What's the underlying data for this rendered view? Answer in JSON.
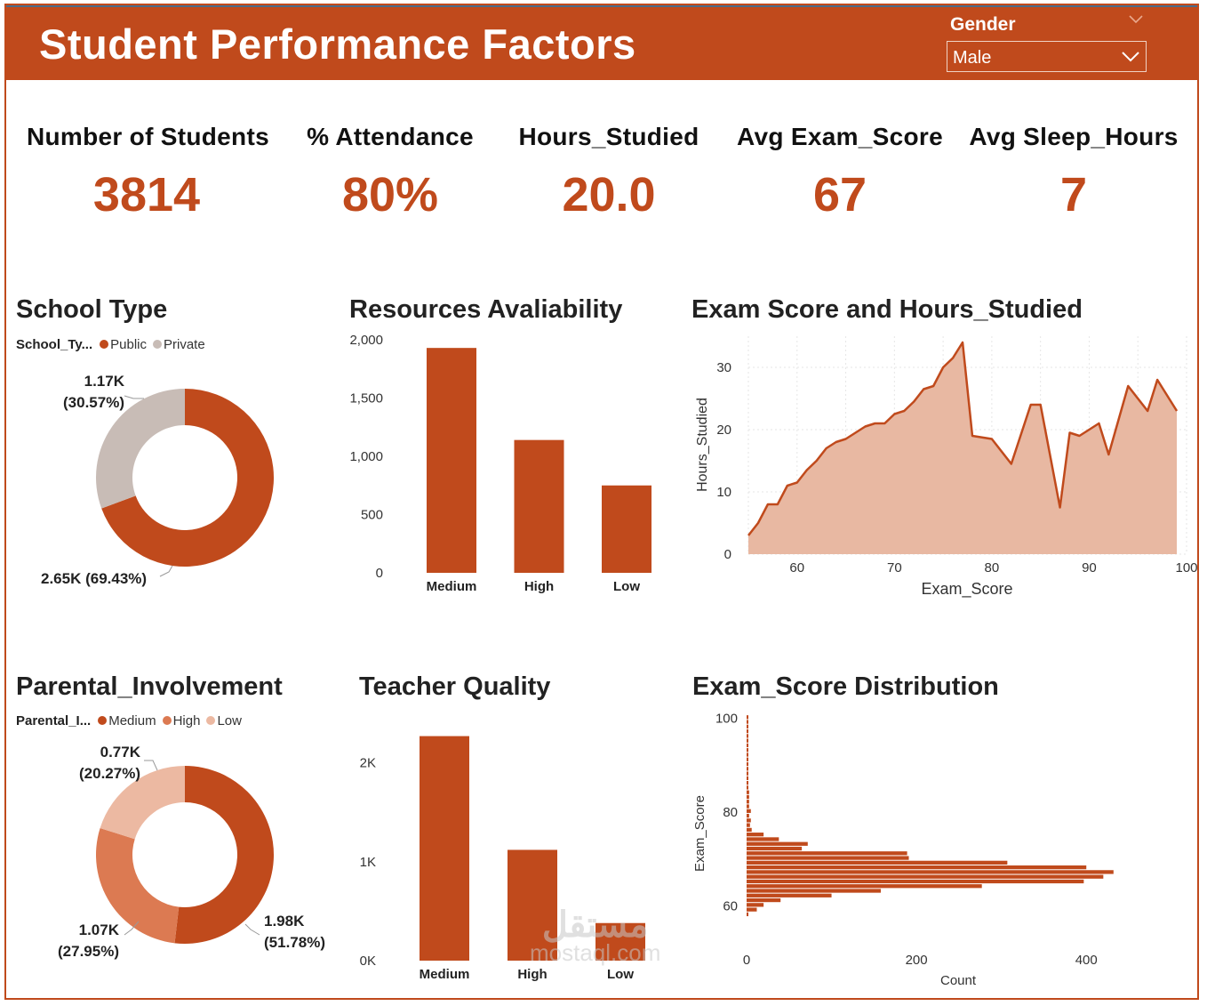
{
  "header": {
    "title": "Student Performance Factors",
    "filter_label": "Gender",
    "filter_value": "Male",
    "accent": "#c04a1c"
  },
  "kpis": [
    {
      "label": "Number of Students",
      "value": "3814"
    },
    {
      "label": "% Attendance",
      "value": "80%"
    },
    {
      "label": "Hours_Studied",
      "value": "20.0"
    },
    {
      "label": "Avg Exam_Score",
      "value": "67"
    },
    {
      "label": "Avg Sleep_Hours",
      "value": "7"
    }
  ],
  "watermark": {
    "line1": "مستقل",
    "line2": "mostaql.com"
  },
  "chart_data": [
    {
      "id": "school_type",
      "type": "pie",
      "variant": "donut",
      "title": "School Type",
      "legend_title": "School_Ty...",
      "categories": [
        "Public",
        "Private"
      ],
      "values": [
        2.65,
        1.17
      ],
      "percents": [
        69.43,
        30.57
      ],
      "labels": [
        [
          "2.65K (69.43%)"
        ],
        [
          "1.17K",
          "(30.57%)"
        ]
      ],
      "colors": [
        "#c04a1c",
        "#c8bcb6"
      ]
    },
    {
      "id": "resources",
      "type": "bar",
      "title": "Resources Avaliability",
      "categories": [
        "Medium",
        "High",
        "Low"
      ],
      "values": [
        1930,
        1140,
        750
      ],
      "ylim": [
        0,
        2000
      ],
      "yticks": [
        0,
        500,
        1000,
        1500,
        2000
      ],
      "ytick_labels": [
        "0",
        "500",
        "1,000",
        "1,500",
        "2,000"
      ],
      "color": "#c04a1c"
    },
    {
      "id": "score_hours",
      "type": "area",
      "title": "Exam Score and Hours_Studied",
      "xlabel": "Exam_Score",
      "ylabel": "Hours_Studied",
      "xlim": [
        55,
        100
      ],
      "ylim": [
        0,
        35
      ],
      "xticks": [
        60,
        70,
        80,
        90,
        100
      ],
      "yticks": [
        0,
        10,
        20,
        30
      ],
      "x": [
        55,
        56,
        57,
        58,
        59,
        60,
        61,
        62,
        63,
        64,
        65,
        66,
        67,
        68,
        69,
        70,
        71,
        72,
        73,
        74,
        75,
        76,
        77,
        78,
        80,
        82,
        84,
        85,
        87,
        88,
        89,
        91,
        92,
        94,
        96,
        97,
        99
      ],
      "y": [
        3,
        5,
        8,
        8,
        11,
        11.5,
        13.5,
        15,
        17,
        18,
        18.5,
        19.5,
        20.5,
        21,
        21,
        22.5,
        23,
        24.5,
        26.5,
        27,
        30,
        31.5,
        34,
        19,
        18.5,
        14.5,
        24,
        24,
        7.5,
        19.5,
        19,
        21,
        16,
        27,
        23,
        28,
        23
      ],
      "line_color": "#c04a1c",
      "fill_color": "#e8b8a2"
    },
    {
      "id": "parental",
      "type": "pie",
      "variant": "donut",
      "title": "Parental_Involvement",
      "legend_title": "Parental_I...",
      "categories": [
        "Medium",
        "High",
        "Low"
      ],
      "values": [
        1.98,
        1.07,
        0.77
      ],
      "percents": [
        51.78,
        27.95,
        20.27
      ],
      "labels": [
        [
          "1.98K",
          "(51.78%)"
        ],
        [
          "1.07K",
          "(27.95%)"
        ],
        [
          "0.77K",
          "(20.27%)"
        ]
      ],
      "colors": [
        "#c04a1c",
        "#dc7a52",
        "#ecb9a2"
      ]
    },
    {
      "id": "teacher",
      "type": "bar",
      "title": "Teacher Quality",
      "categories": [
        "Medium",
        "High",
        "Low"
      ],
      "values": [
        2270,
        1120,
        380
      ],
      "ylim": [
        0,
        2500
      ],
      "yticks": [
        0,
        1000,
        2000
      ],
      "ytick_labels": [
        "0K",
        "1K",
        "2K"
      ],
      "color": "#c04a1c"
    },
    {
      "id": "distribution",
      "type": "bar",
      "orientation": "horizontal",
      "title": "Exam_Score Distribution",
      "xlabel": "Count",
      "ylabel": "Exam_Score",
      "xlim": [
        0,
        450
      ],
      "ylim": [
        54,
        101
      ],
      "xticks": [
        0,
        200,
        400
      ],
      "yticks": [
        60,
        80,
        100
      ],
      "categories": [
        58,
        59,
        60,
        61,
        62,
        63,
        64,
        65,
        66,
        67,
        68,
        69,
        70,
        71,
        72,
        73,
        74,
        75,
        76,
        77,
        78,
        79,
        80,
        81,
        82,
        83,
        84,
        85,
        86,
        87,
        88,
        89,
        90,
        91,
        92,
        93,
        94,
        95,
        96,
        97,
        98,
        99,
        100
      ],
      "values": [
        2,
        12,
        20,
        40,
        100,
        158,
        277,
        397,
        420,
        432,
        400,
        307,
        191,
        189,
        65,
        72,
        38,
        20,
        6,
        4,
        5,
        3,
        5,
        3,
        3,
        3,
        3,
        2,
        2,
        2,
        2,
        2,
        2,
        2,
        2,
        2,
        2,
        2,
        2,
        2,
        2,
        2,
        2
      ],
      "color": "#c04a1c"
    }
  ]
}
